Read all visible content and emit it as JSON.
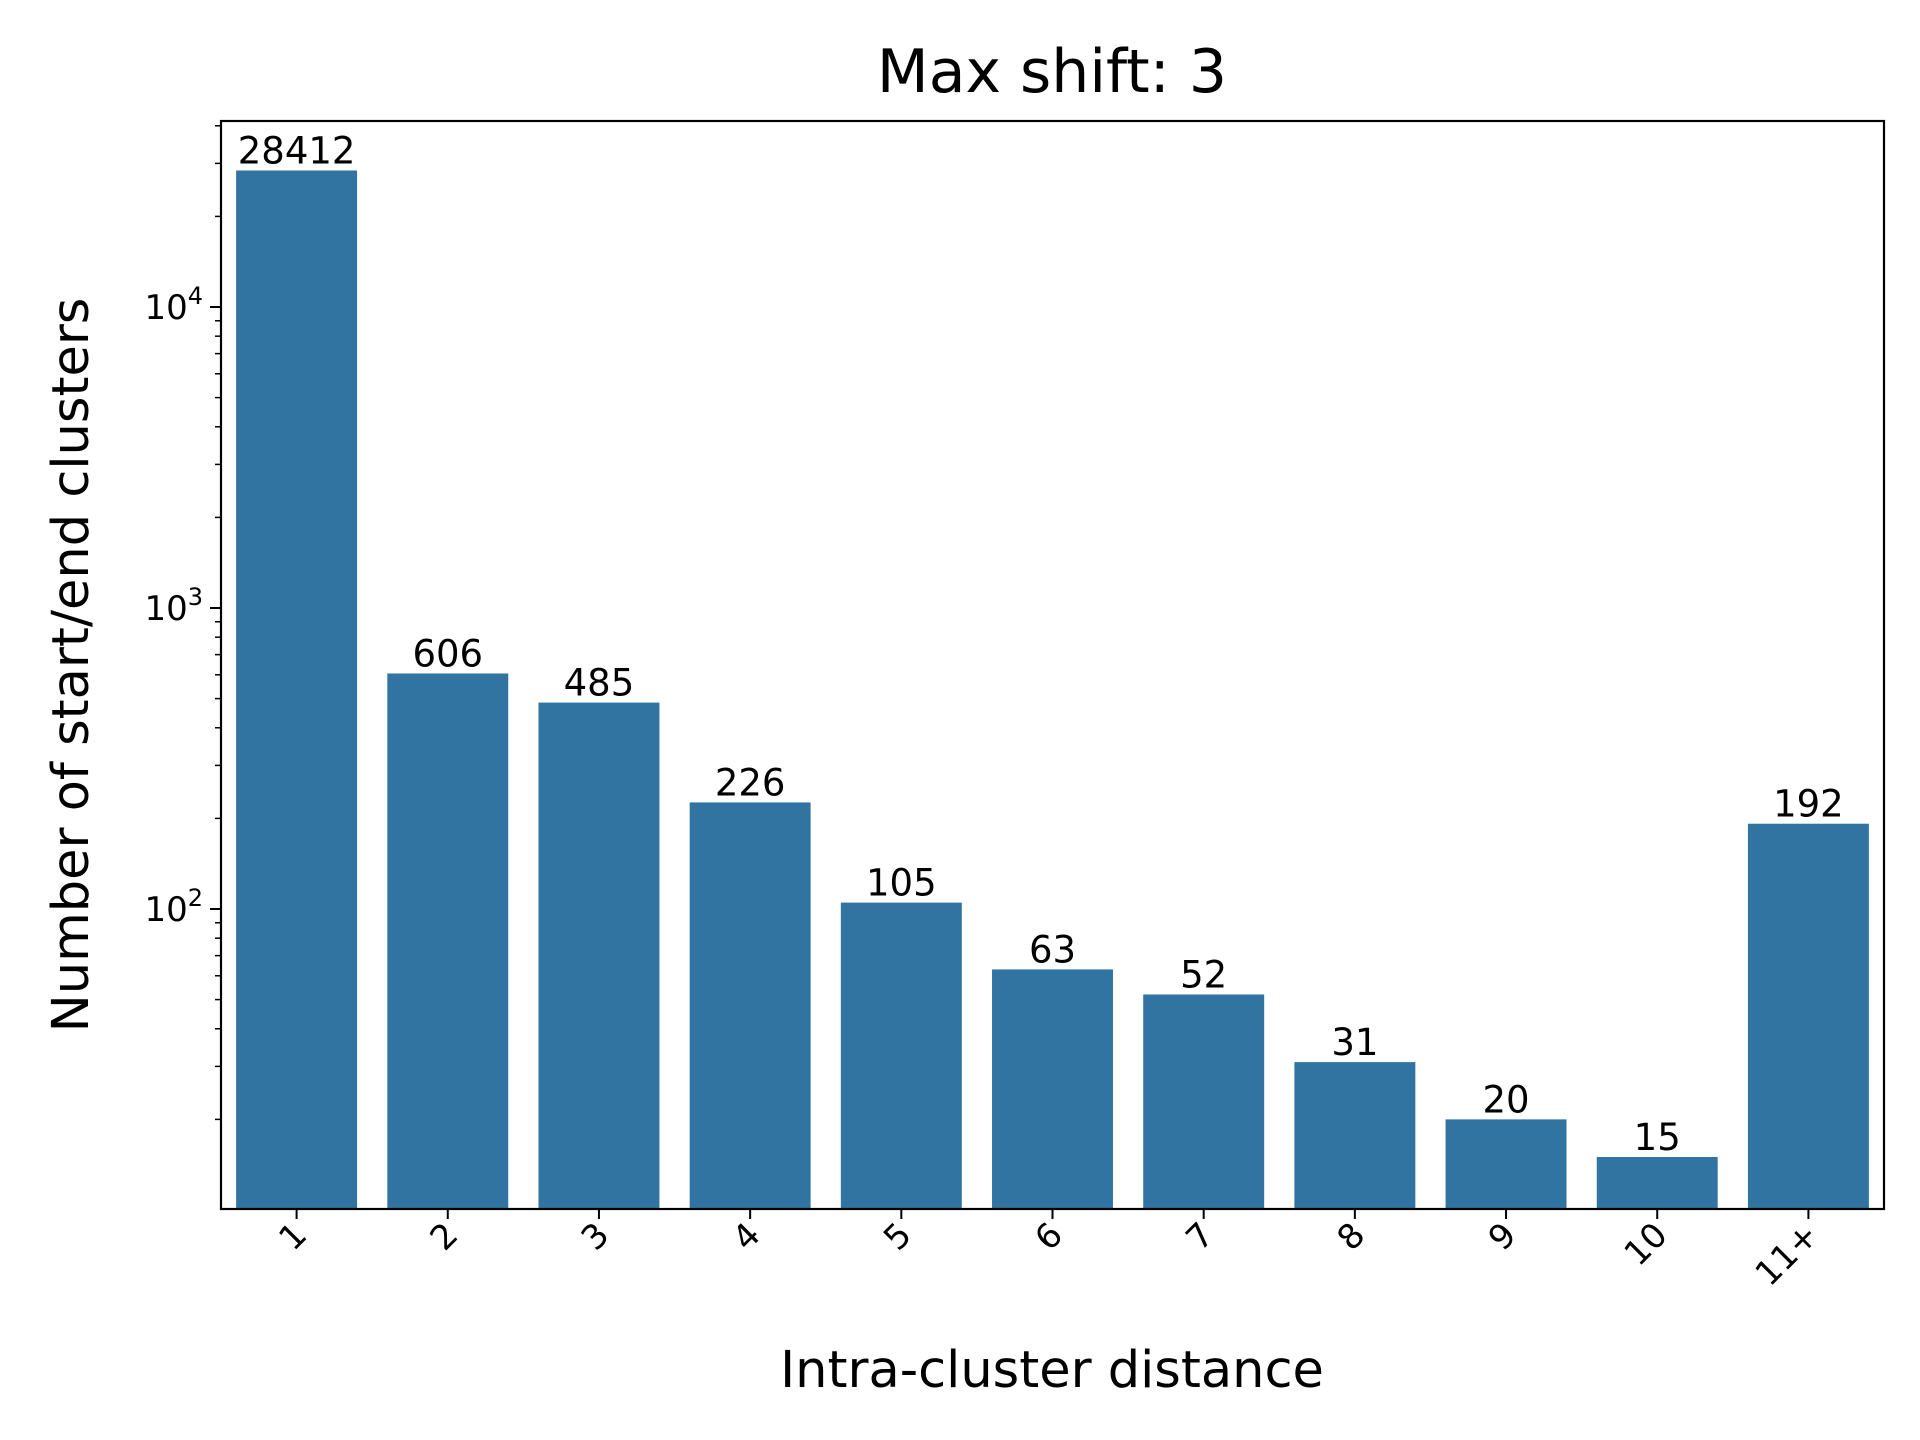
{
  "chart_data": {
    "type": "bar",
    "title": "Max shift: 3",
    "xlabel": "Intra-cluster distance",
    "ylabel": "Number of start/end clusters",
    "yscale": "log",
    "ylim": [
      11.5,
      40000
    ],
    "grid": false,
    "legend": "none",
    "categories": [
      "1",
      "2",
      "3",
      "4",
      "5",
      "6",
      "7",
      "8",
      "9",
      "10",
      "11+"
    ],
    "values": [
      28412,
      606,
      485,
      226,
      105,
      63,
      52,
      31,
      20,
      15,
      192
    ],
    "data_labels": [
      "28412",
      "606",
      "485",
      "226",
      "105",
      "63",
      "52",
      "31",
      "20",
      "15",
      "192"
    ],
    "y_ticks": [
      {
        "value": 100,
        "base": "10",
        "exp": "2"
      },
      {
        "value": 1000,
        "base": "10",
        "exp": "3"
      },
      {
        "value": 10000,
        "base": "10",
        "exp": "4"
      }
    ],
    "bar_color": "#3274a1"
  }
}
